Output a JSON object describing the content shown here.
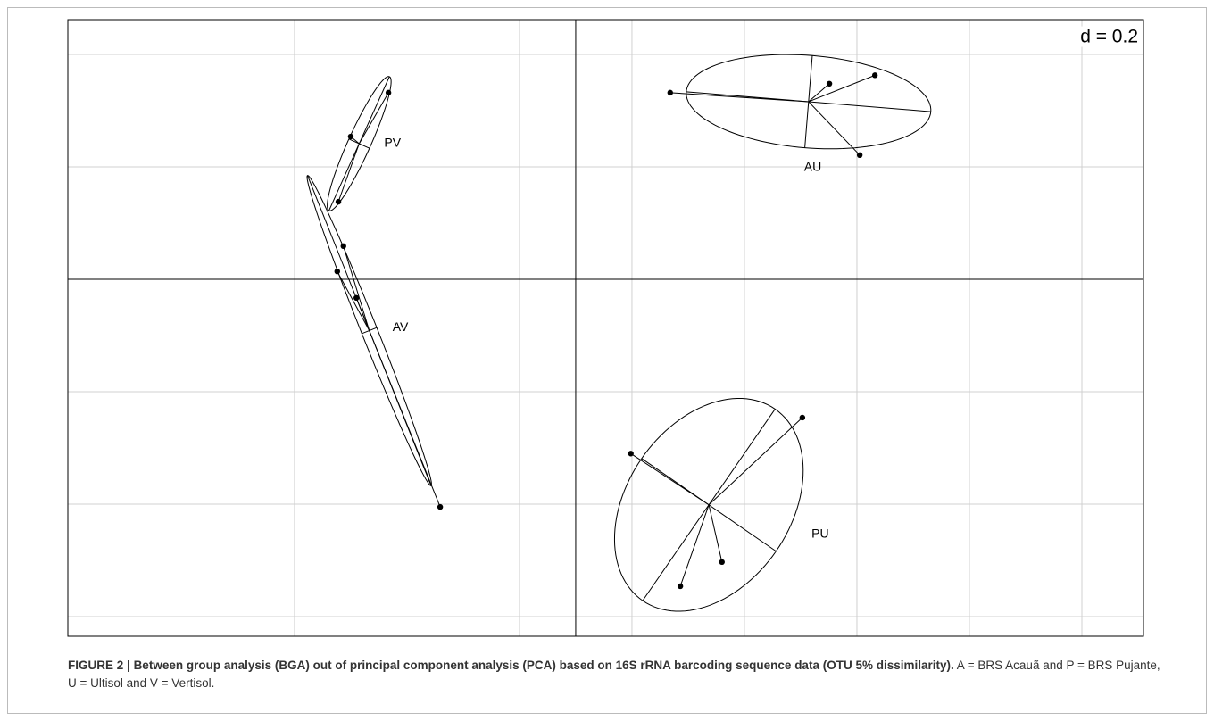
{
  "chart_data": {
    "type": "scatter",
    "annotation": "d = 0.2",
    "xlim": [
      -0.903,
      1.0095
    ],
    "ylim": [
      -0.635,
      0.462
    ],
    "xticks": [
      -0.5,
      -0.1,
      0.1,
      0.3,
      0.5,
      0.7,
      0.9
    ],
    "yticks": [
      -0.6,
      -0.4,
      -0.2,
      0.2,
      0.4
    ],
    "grid": true,
    "series": [
      {
        "name": "PV",
        "color": "#000000",
        "x": [
          -0.333,
          -0.4,
          -0.422
        ],
        "y": [
          0.332,
          0.254,
          0.138
        ]
      },
      {
        "name": "AV",
        "color": "#000000",
        "x": [
          -0.413,
          -0.424,
          -0.39,
          -0.241
        ],
        "y": [
          0.059,
          0.014,
          -0.033,
          -0.405
        ]
      },
      {
        "name": "AU",
        "color": "#000000",
        "x": [
          0.168,
          0.451,
          0.532,
          0.505
        ],
        "y": [
          0.332,
          0.348,
          0.363,
          0.221
        ]
      },
      {
        "name": "PU",
        "color": "#000000",
        "x": [
          0.098,
          0.403,
          0.26,
          0.186
        ],
        "y": [
          -0.31,
          -0.246,
          -0.503,
          -0.546
        ]
      }
    ]
  },
  "caption": {
    "label": "FIGURE 2 |",
    "title": "Between group analysis (BGA) out of principal component analysis (PCA) based on 16S rRNA barcoding sequence data (OTU 5% dissimilarity).",
    "text": "A = BRS Acauã and P = BRS Pujante, U = Ultisol and V = Vertisol."
  }
}
